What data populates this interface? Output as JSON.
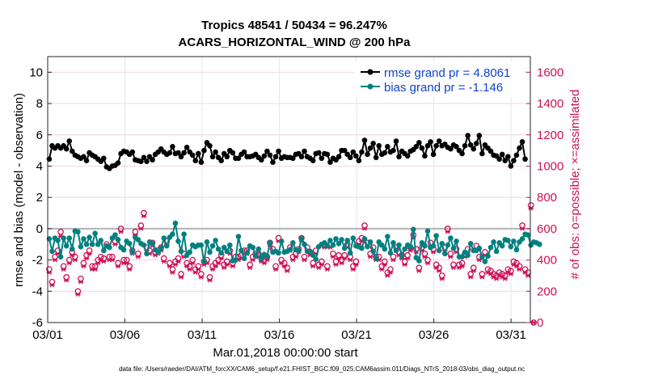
{
  "chart_data": {
    "type": "line",
    "title_line1": "Tropics 48541 / 50434 = 96.247%",
    "title_line2": "ACARS_HORIZONTAL_WIND @ 200 hPa",
    "xlabel": "Mar.01,2018 00:00:00 start",
    "ylabel_left": "rmse and bias (model - observation)",
    "ylabel_right": "# of obs: o=possible; ×=assimilated",
    "footer": "data file: /Users/raeder/DAI/ATM_forcXX/CAM6_setup/f.e21.FHIST_BGC.f09_025.CAM6assim.011/Diags_NTrS_2018-03/obs_diag_output.nc",
    "xlim": [
      0,
      31.25
    ],
    "ylim_left": [
      -6,
      11
    ],
    "ylim_right": [
      0,
      1700
    ],
    "x_ticks": [
      0,
      5,
      10,
      15,
      20,
      25,
      30
    ],
    "x_tick_labels": [
      "03/01",
      "03/06",
      "03/11",
      "03/16",
      "03/21",
      "03/26",
      "03/31"
    ],
    "y_left_ticks": [
      -6,
      -4,
      -2,
      0,
      2,
      4,
      6,
      8,
      10
    ],
    "y_left_tick_labels": [
      "-6",
      "-4",
      "-2",
      "0",
      "2",
      "4",
      "6",
      "8",
      "10"
    ],
    "y_right_ticks": [
      0,
      200,
      400,
      600,
      800,
      1000,
      1200,
      1400,
      1600
    ],
    "y_right_tick_labels": [
      "0",
      "200",
      "400",
      "600",
      "800",
      "1000",
      "1200",
      "1400",
      "1600"
    ],
    "grid": true,
    "legend_position": "top-right",
    "colors": {
      "rmse": "#000000",
      "bias": "#008080",
      "obs": "#cc1155",
      "legend_text": "#1144cc",
      "zero_line": "#b3b3b3"
    },
    "series": [
      {
        "name": "rmse grand pr = 4.8061",
        "axis": "left",
        "values": [
          4.45,
          5.3,
          5.15,
          5.3,
          5.15,
          5.3,
          5.1,
          5.6,
          4.95,
          4.7,
          4.6,
          4.5,
          4.6,
          4.35,
          4.85,
          4.7,
          4.6,
          4.45,
          4.3,
          4.5,
          3.95,
          3.85,
          4.0,
          4.05,
          4.2,
          4.8,
          4.95,
          4.9,
          4.75,
          4.9,
          4.4,
          4.35,
          4.3,
          4.55,
          4.3,
          4.6,
          4.4,
          4.75,
          4.9,
          5.1,
          4.9,
          4.75,
          4.85,
          5.25,
          4.8,
          4.85,
          4.6,
          4.85,
          5.2,
          4.9,
          4.7,
          4.35,
          4.8,
          4.25,
          5.0,
          5.5,
          5.3,
          4.6,
          4.9,
          4.55,
          4.35,
          4.8,
          4.6,
          5.0,
          4.85,
          4.5,
          4.5,
          4.75,
          4.9,
          4.6,
          4.6,
          4.65,
          4.75,
          4.55,
          4.4,
          4.65,
          4.95,
          4.7,
          4.25,
          4.6,
          4.95,
          4.5,
          4.6,
          4.55,
          4.55,
          4.5,
          4.75,
          4.8,
          4.6,
          4.95,
          4.6,
          4.5,
          4.35,
          4.8,
          4.85,
          4.5,
          4.8,
          4.75,
          4.25,
          4.5,
          4.4,
          4.6,
          5.0,
          5.0,
          4.75,
          4.55,
          4.9,
          4.65,
          4.35,
          4.9,
          5.65,
          4.75,
          5.15,
          5.45,
          4.55,
          5.3,
          4.75,
          4.85,
          5.25,
          4.9,
          5.0,
          5.6,
          4.6,
          4.95,
          4.8,
          4.65,
          4.95,
          5.05,
          5.25,
          5.5,
          5.15,
          4.65,
          5.3,
          5.55,
          4.75,
          5.3,
          5.6,
          5.3,
          5.4,
          5.2,
          5.1,
          5.35,
          5.25,
          5.0,
          4.8,
          5.3,
          5.95,
          5.35,
          5.1,
          5.45,
          5.95,
          4.8,
          5.35,
          5.15,
          4.95,
          4.7,
          4.65,
          4.45,
          4.75,
          4.35,
          4.6,
          4.0,
          4.35,
          4.7,
          5.15,
          5.55,
          4.45
        ]
      },
      {
        "name": "bias grand pr = -1.146",
        "axis": "left",
        "values": [
          -0.65,
          -1.45,
          -0.6,
          -0.75,
          -1.8,
          -0.6,
          -1.1,
          -0.6,
          -1.3,
          -0.15,
          -0.2,
          -1.15,
          -0.65,
          -1.0,
          -0.55,
          -1.0,
          -0.3,
          -1.0,
          -0.75,
          -1.4,
          -1.1,
          -1.2,
          -0.6,
          -0.4,
          -0.7,
          -1.2,
          -1.35,
          -0.8,
          -0.95,
          -1.5,
          -0.55,
          -0.7,
          -0.95,
          -1.05,
          -1.6,
          -0.85,
          -0.95,
          -1.35,
          -1.5,
          -1.25,
          -0.6,
          -1.1,
          -0.55,
          -0.35,
          0.35,
          -0.8,
          -1.45,
          -0.35,
          -1.7,
          -1.5,
          -1.05,
          -1.15,
          -1.05,
          -1.05,
          -2.1,
          -0.85,
          -1.5,
          -1.1,
          -0.75,
          -1.3,
          -1.55,
          -1.2,
          -1.45,
          -1.05,
          -2.05,
          -2.0,
          -0.5,
          -1.4,
          -1.9,
          -1.55,
          -1.1,
          -1.2,
          -1.75,
          -1.3,
          -1.9,
          -1.65,
          -1.75,
          -0.9,
          -1.5,
          -1.45,
          -1.55,
          -0.8,
          -1.5,
          -1.45,
          -1.35,
          -0.9,
          -1.35,
          -1.4,
          -0.65,
          -1.0,
          -1.45,
          -1.45,
          -1.7,
          -1.95,
          -1.15,
          -1.0,
          -0.9,
          -1.1,
          -0.75,
          -1.05,
          -0.65,
          -0.95,
          -0.7,
          -1.25,
          -0.75,
          -1.55,
          -0.6,
          -1.1,
          -1.15,
          -1.25,
          -0.65,
          -1.15,
          -0.85,
          -1.45,
          -1.9,
          -0.85,
          -1.05,
          -1.3,
          -0.5,
          -1.55,
          -0.9,
          -1.4,
          -1.05,
          -1.75,
          -1.3,
          -1.05,
          -1.15,
          -0.05,
          -1.85,
          -2.05,
          -0.9,
          -1.1,
          -0.15,
          -1.2,
          -1.1,
          -0.45,
          -1.4,
          -0.95,
          -1.6,
          -1.05,
          -0.6,
          -1.25,
          -0.8,
          -1.8,
          -1.8,
          -1.5,
          -1.7,
          -0.95,
          -1.4,
          -1.4,
          -1.25,
          -1.8,
          -2.1,
          -1.75,
          -1.2,
          -0.85,
          -1.45,
          -0.9,
          -1.1,
          -0.7,
          -0.75,
          -1.15,
          -0.8,
          -1.35,
          -0.85,
          -0.65,
          -0.35,
          -0.4,
          -1.05,
          -0.85,
          -0.9,
          -1.0
        ]
      },
      {
        "name": "possible",
        "axis": "right",
        "values": [
          340,
          260,
          420,
          460,
          580,
          360,
          290,
          400,
          450,
          420,
          200,
          280,
          380,
          430,
          460,
          360,
          360,
          400,
          420,
          410,
          500,
          420,
          420,
          520,
          380,
          600,
          400,
          400,
          360,
          460,
          580,
          440,
          620,
          700,
          480,
          460,
          510,
          450,
          460,
          480,
          410,
          520,
          380,
          340,
          390,
          410,
          310,
          440,
          380,
          360,
          400,
          340,
          360,
          310,
          390,
          400,
          290,
          360,
          380,
          400,
          430,
          370,
          390,
          460,
          380,
          420,
          420,
          430,
          460,
          460,
          370,
          420,
          440,
          440,
          410,
          400,
          420,
          510,
          470,
          360,
          540,
          400,
          380,
          350,
          480,
          420,
          440,
          470,
          540,
          420,
          480,
          450,
          380,
          460,
          370,
          390,
          500,
          360,
          500,
          440,
          390,
          430,
          400,
          430,
          500,
          420,
          360,
          390,
          520,
          540,
          620,
          510,
          440,
          480,
          420,
          420,
          360,
          390,
          320,
          340,
          420,
          480,
          450,
          430,
          390,
          430,
          480,
          560,
          470,
          350,
          480,
          440,
          400,
          510,
          470,
          370,
          350,
          300,
          480,
          600,
          440,
          370,
          470,
          370,
          380,
          440,
          470,
          310,
          350,
          490,
          420,
          310,
          450,
          340,
          330,
          310,
          300,
          320,
          310,
          300,
          340,
          330,
          390,
          380,
          360,
          620,
          340,
          320,
          750,
          0
        ]
      },
      {
        "name": "assimilated",
        "axis": "right",
        "values": [
          320,
          240,
          400,
          440,
          550,
          340,
          270,
          380,
          430,
          400,
          180,
          260,
          360,
          410,
          440,
          340,
          340,
          380,
          400,
          390,
          480,
          400,
          400,
          500,
          360,
          580,
          380,
          380,
          340,
          440,
          560,
          420,
          600,
          680,
          460,
          440,
          490,
          430,
          440,
          460,
          390,
          500,
          360,
          320,
          370,
          390,
          290,
          420,
          360,
          340,
          380,
          320,
          340,
          290,
          370,
          380,
          270,
          340,
          360,
          380,
          410,
          350,
          370,
          440,
          360,
          400,
          400,
          410,
          440,
          440,
          350,
          400,
          420,
          420,
          390,
          380,
          400,
          490,
          450,
          340,
          520,
          380,
          360,
          330,
          460,
          400,
          420,
          450,
          520,
          400,
          460,
          430,
          360,
          440,
          350,
          370,
          480,
          340,
          480,
          420,
          370,
          410,
          380,
          410,
          480,
          400,
          340,
          370,
          500,
          520,
          600,
          490,
          420,
          460,
          400,
          400,
          340,
          370,
          300,
          320,
          400,
          460,
          430,
          410,
          370,
          410,
          460,
          540,
          450,
          330,
          460,
          420,
          380,
          490,
          450,
          350,
          330,
          280,
          460,
          580,
          420,
          350,
          450,
          350,
          360,
          420,
          450,
          290,
          330,
          470,
          400,
          290,
          430,
          320,
          310,
          290,
          280,
          300,
          290,
          280,
          320,
          310,
          370,
          360,
          340,
          600,
          320,
          300,
          730,
          0
        ]
      }
    ],
    "legend": [
      {
        "label": "rmse grand pr = 4.8061",
        "color": "#000000"
      },
      {
        "label": "bias grand pr = -1.146",
        "color": "#008080"
      }
    ]
  }
}
